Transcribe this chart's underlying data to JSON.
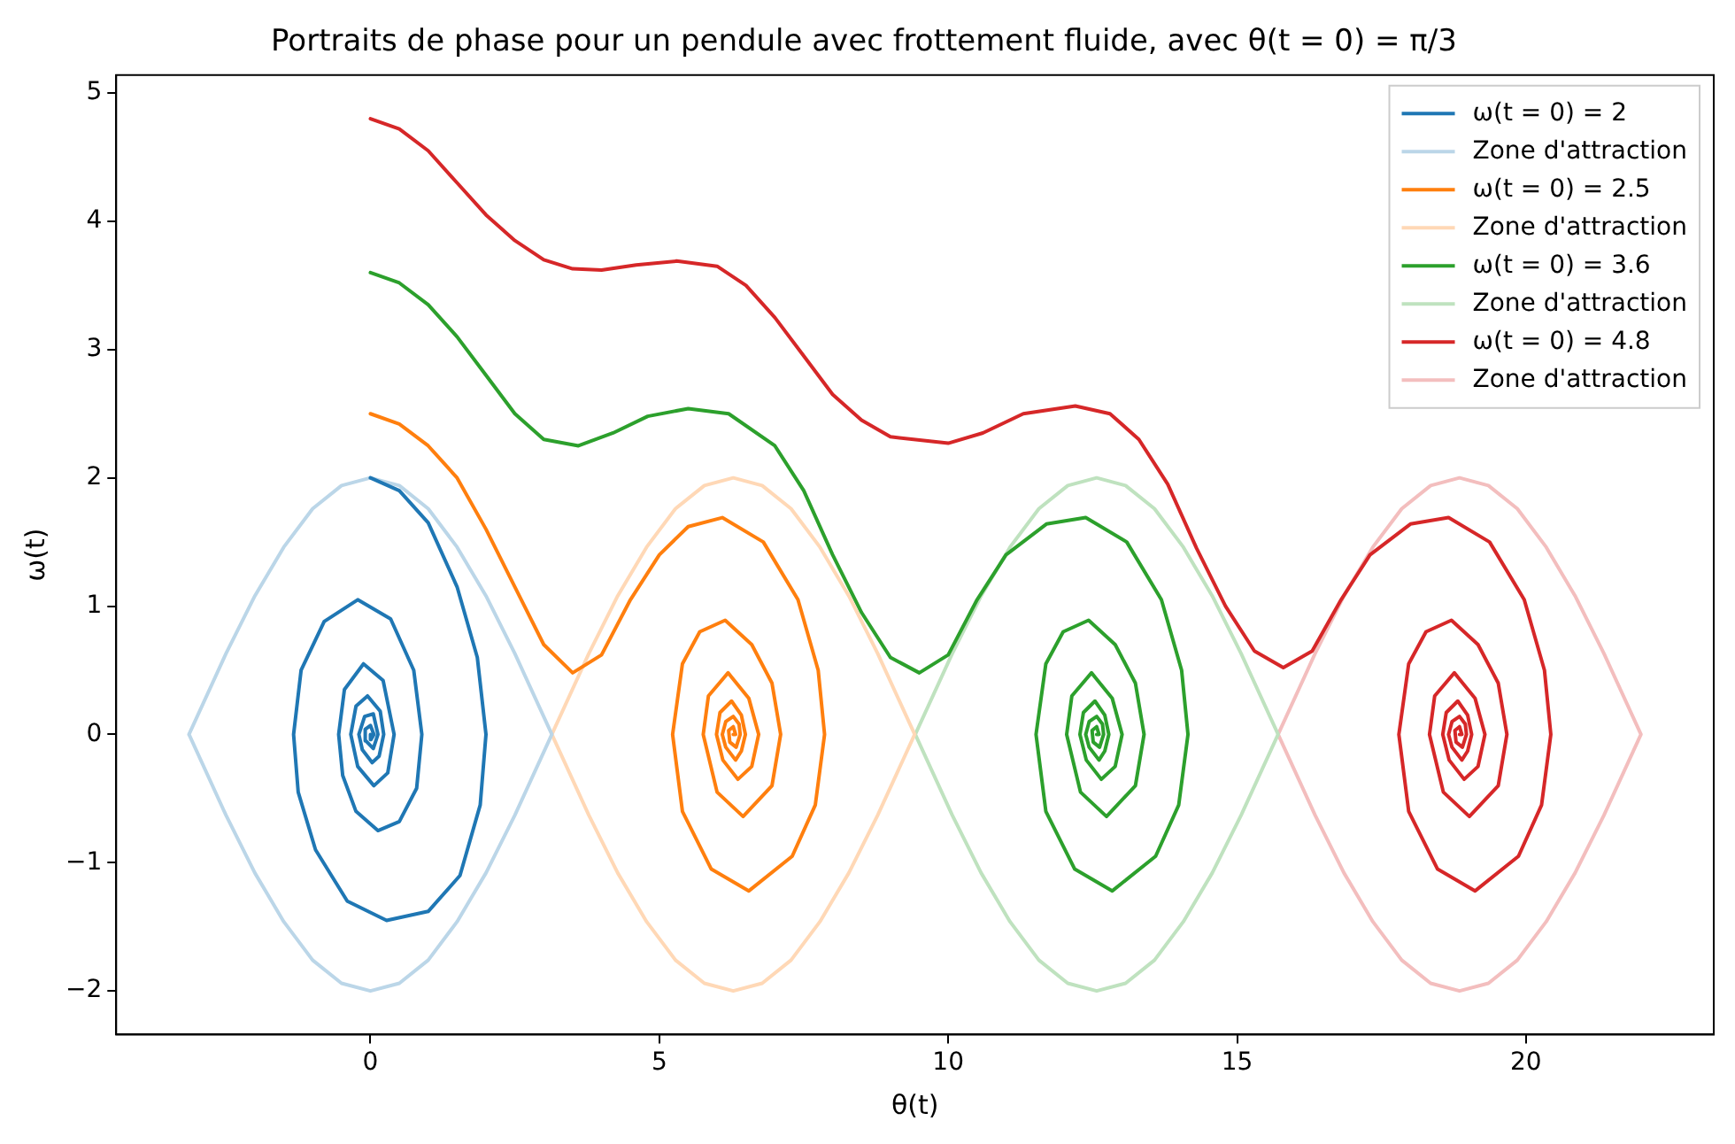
{
  "chart_data": {
    "type": "line",
    "title": "Portraits de phase pour un pendule avec frottement fluide, avec θ(t = 0) = π/3",
    "xlabel": "θ(t)",
    "ylabel": "ω(t)",
    "xlim": [
      -4.4,
      23.25
    ],
    "ylim": [
      -2.34,
      5.14
    ],
    "xticks": [
      0,
      5,
      10,
      15,
      20
    ],
    "yticks": [
      -2,
      -1,
      0,
      1,
      2,
      3,
      4,
      5
    ],
    "grid": false,
    "legend": "top right",
    "marker": "none",
    "line_style": "solid",
    "series": [
      {
        "name": "ω(t = 0) = 2",
        "color": "#1f77b4",
        "x": [
          0,
          0.5,
          1.0,
          1.5,
          1.85,
          2.0,
          1.9,
          1.55,
          1.0,
          0.28,
          -0.4,
          -0.95,
          -1.25,
          -1.33,
          -1.2,
          -0.8,
          -0.22,
          0.35,
          0.75,
          0.89,
          0.8,
          0.5,
          0.13,
          -0.25,
          -0.48,
          -0.55,
          -0.45,
          -0.12,
          0.22,
          0.41,
          0.3,
          0.06,
          -0.22,
          -0.34,
          -0.25,
          -0.05,
          0.17,
          0.23,
          0.15,
          0.03,
          -0.14,
          -0.2,
          -0.1,
          0.05,
          0.13,
          0.05,
          -0.08,
          -0.09,
          0,
          0.06,
          0.01,
          0
        ],
        "values": [
          2,
          1.9,
          1.65,
          1.15,
          0.6,
          0,
          -0.55,
          -1.1,
          -1.38,
          -1.45,
          -1.3,
          -0.9,
          -0.45,
          0,
          0.5,
          0.88,
          1.05,
          0.9,
          0.5,
          0,
          -0.42,
          -0.68,
          -0.75,
          -0.6,
          -0.32,
          0,
          0.35,
          0.55,
          0.42,
          0,
          -0.3,
          -0.4,
          -0.25,
          0,
          0.22,
          0.3,
          0.18,
          0,
          -0.17,
          -0.22,
          -0.12,
          0,
          0.14,
          0.16,
          0,
          -0.11,
          -0.05,
          0.04,
          0.07,
          0,
          -0.04,
          0
        ]
      },
      {
        "name": "Zone d'attraction",
        "color": "#bbd6e8",
        "x": [
          -3.14,
          -2.5,
          -2,
          -1.5,
          -1,
          -0.5,
          0,
          0.5,
          1,
          1.5,
          2,
          2.5,
          3.14,
          2.5,
          2,
          1.5,
          1,
          0.5,
          0,
          -0.5,
          -1,
          -1.5,
          -2,
          -2.5,
          -3.14,
          -2.5
        ],
        "values": [
          0,
          0.63,
          1.08,
          1.46,
          1.76,
          1.94,
          2,
          1.94,
          1.76,
          1.46,
          1.08,
          0.63,
          0,
          -0.63,
          -1.08,
          -1.46,
          -1.76,
          -1.94,
          -2,
          -1.94,
          -1.76,
          -1.46,
          -1.08,
          -0.63,
          0,
          0.63
        ]
      },
      {
        "name": "ω(t = 0) = 2.5",
        "color": "#ff7f0e",
        "x": [
          0,
          0.5,
          1,
          1.5,
          2,
          2.5,
          3,
          3.5,
          4,
          4.5,
          5,
          5.5,
          6.09,
          6.8,
          7.4,
          7.75,
          7.86,
          7.7,
          7.3,
          6.55,
          5.9,
          5.4,
          5.23,
          5.4,
          5.7,
          6.14,
          6.6,
          6.95,
          7.1,
          6.95,
          6.45,
          6.0,
          5.76,
          5.85,
          6.19,
          6.55,
          6.72,
          6.6,
          6.36,
          6.1,
          5.99,
          6.05,
          6.25,
          6.42,
          6.49,
          6.42,
          6.32,
          6.15,
          6.09,
          6.15,
          6.28,
          6.38,
          6.4,
          6.33,
          6.22,
          6.2,
          6.28,
          6.32,
          6.28
        ],
        "values": [
          2.5,
          2.42,
          2.25,
          2.0,
          1.6,
          1.15,
          0.7,
          0.48,
          0.62,
          1.05,
          1.4,
          1.62,
          1.69,
          1.5,
          1.05,
          0.5,
          0,
          -0.55,
          -0.95,
          -1.22,
          -1.05,
          -0.6,
          0,
          0.55,
          0.8,
          0.89,
          0.7,
          0.4,
          0,
          -0.4,
          -0.64,
          -0.45,
          0,
          0.3,
          0.48,
          0.28,
          0,
          -0.25,
          -0.35,
          -0.2,
          0,
          0.17,
          0.26,
          0.15,
          0,
          -0.13,
          -0.2,
          -0.1,
          0,
          0.1,
          0.14,
          0.08,
          0,
          -0.1,
          -0.06,
          0.03,
          0.06,
          0,
          0
        ]
      },
      {
        "name": "Zone d'attraction",
        "color": "#ffd8b6",
        "x": [
          3.14,
          3.78,
          4.28,
          4.78,
          5.28,
          5.78,
          6.28,
          6.78,
          7.28,
          7.78,
          8.28,
          8.78,
          9.42,
          8.78,
          8.28,
          7.78,
          7.28,
          6.78,
          6.28,
          5.78,
          5.28,
          4.78,
          4.28,
          3.78,
          3.14,
          3.78
        ],
        "values": [
          0,
          0.63,
          1.08,
          1.46,
          1.76,
          1.94,
          2,
          1.94,
          1.76,
          1.46,
          1.08,
          0.63,
          0,
          -0.63,
          -1.08,
          -1.46,
          -1.76,
          -1.94,
          -2,
          -1.94,
          -1.76,
          -1.46,
          -1.08,
          -0.63,
          0,
          0.63
        ]
      },
      {
        "name": "ω(t = 0) = 3.6",
        "color": "#2ca02c",
        "x": [
          0,
          0.5,
          1,
          1.5,
          2,
          2.5,
          3,
          3.6,
          4.2,
          4.8,
          5.5,
          6.2,
          7,
          7.5,
          8,
          8.5,
          9,
          9.5,
          10,
          10.5,
          11,
          11.7,
          12.38,
          13.09,
          13.69,
          14.04,
          14.15,
          13.99,
          13.59,
          12.84,
          12.19,
          11.69,
          11.52,
          11.69,
          11.99,
          12.43,
          12.89,
          13.24,
          13.39,
          13.24,
          12.74,
          12.29,
          12.05,
          12.14,
          12.48,
          12.84,
          13.01,
          12.89,
          12.65,
          12.39,
          12.28,
          12.34,
          12.54,
          12.71,
          12.78,
          12.71,
          12.61,
          12.44,
          12.38,
          12.44,
          12.57,
          12.67,
          12.69,
          12.62,
          12.51,
          12.49,
          12.57,
          12.61,
          12.57
        ],
        "values": [
          3.6,
          3.52,
          3.35,
          3.1,
          2.8,
          2.5,
          2.3,
          2.25,
          2.35,
          2.48,
          2.54,
          2.5,
          2.25,
          1.9,
          1.4,
          0.95,
          0.6,
          0.48,
          0.62,
          1.05,
          1.4,
          1.64,
          1.69,
          1.5,
          1.05,
          0.5,
          0,
          -0.55,
          -0.95,
          -1.22,
          -1.05,
          -0.6,
          0,
          0.55,
          0.8,
          0.89,
          0.7,
          0.4,
          0,
          -0.4,
          -0.64,
          -0.45,
          0,
          0.3,
          0.48,
          0.28,
          0,
          -0.25,
          -0.35,
          -0.2,
          0,
          0.17,
          0.26,
          0.15,
          0,
          -0.13,
          -0.2,
          -0.1,
          0,
          0.1,
          0.14,
          0.08,
          0,
          -0.1,
          -0.06,
          0.03,
          0.06,
          0,
          0
        ]
      },
      {
        "name": "Zone d'attraction",
        "color": "#bfe2bf",
        "x": [
          9.43,
          10.07,
          10.57,
          11.07,
          11.57,
          12.07,
          12.57,
          13.07,
          13.57,
          14.07,
          14.57,
          15.07,
          15.71,
          15.07,
          14.57,
          14.07,
          13.57,
          13.07,
          12.57,
          12.07,
          11.57,
          11.07,
          10.57,
          10.07,
          9.43,
          10.07
        ],
        "values": [
          0,
          0.63,
          1.08,
          1.46,
          1.76,
          1.94,
          2,
          1.94,
          1.76,
          1.46,
          1.08,
          0.63,
          0,
          -0.63,
          -1.08,
          -1.46,
          -1.76,
          -1.94,
          -2,
          -1.94,
          -1.76,
          -1.46,
          -1.08,
          -0.63,
          0,
          0.63
        ]
      },
      {
        "name": "ω(t = 0) = 4.8",
        "color": "#d62728",
        "x": [
          0,
          0.5,
          1,
          1.5,
          2,
          2.5,
          3,
          3.5,
          4,
          4.6,
          5.3,
          6,
          6.5,
          7,
          7.5,
          8,
          8.5,
          9,
          10,
          10.6,
          11.3,
          12.2,
          12.8,
          13.3,
          13.8,
          14.3,
          14.8,
          15.3,
          15.8,
          16.3,
          16.8,
          17.3,
          18,
          18.66,
          19.37,
          19.97,
          20.32,
          20.43,
          20.27,
          19.87,
          19.12,
          18.47,
          17.97,
          17.8,
          17.97,
          18.27,
          18.71,
          19.17,
          19.52,
          19.67,
          19.52,
          19.02,
          18.57,
          18.33,
          18.42,
          18.76,
          19.12,
          19.29,
          19.17,
          18.93,
          18.67,
          18.56,
          18.62,
          18.82,
          18.99,
          19.06,
          18.99,
          18.89,
          18.72,
          18.66,
          18.72,
          18.85,
          18.95,
          18.97,
          18.9,
          18.79,
          18.77,
          18.85,
          18.89,
          18.85
        ],
        "values": [
          4.8,
          4.72,
          4.55,
          4.3,
          4.05,
          3.85,
          3.7,
          3.63,
          3.62,
          3.66,
          3.69,
          3.65,
          3.5,
          3.25,
          2.95,
          2.65,
          2.45,
          2.32,
          2.27,
          2.35,
          2.5,
          2.56,
          2.5,
          2.3,
          1.95,
          1.45,
          1.0,
          0.65,
          0.52,
          0.65,
          1.05,
          1.4,
          1.64,
          1.69,
          1.5,
          1.05,
          0.5,
          0,
          -0.55,
          -0.95,
          -1.22,
          -1.05,
          -0.6,
          0,
          0.55,
          0.8,
          0.89,
          0.7,
          0.4,
          0,
          -0.4,
          -0.64,
          -0.45,
          0,
          0.3,
          0.48,
          0.28,
          0,
          -0.25,
          -0.35,
          -0.2,
          0,
          0.17,
          0.26,
          0.15,
          0,
          -0.13,
          -0.2,
          -0.1,
          0,
          0.1,
          0.14,
          0.08,
          0,
          -0.1,
          -0.06,
          0.03,
          0.06,
          0,
          0
        ]
      },
      {
        "name": "Zone d'attraction",
        "color": "#f3bebe",
        "x": [
          15.71,
          16.35,
          16.85,
          17.35,
          17.85,
          18.35,
          18.85,
          19.35,
          19.85,
          20.35,
          20.85,
          21.35,
          21.99,
          21.35,
          20.85,
          20.35,
          19.85,
          19.35,
          18.85,
          18.35,
          17.85,
          17.35,
          16.85,
          16.35,
          15.71,
          16.35
        ],
        "values": [
          0,
          0.63,
          1.08,
          1.46,
          1.76,
          1.94,
          2,
          1.94,
          1.76,
          1.46,
          1.08,
          0.63,
          0,
          -0.63,
          -1.08,
          -1.46,
          -1.76,
          -1.94,
          -2,
          -1.94,
          -1.76,
          -1.46,
          -1.08,
          -0.63,
          0,
          0.63
        ]
      }
    ]
  }
}
